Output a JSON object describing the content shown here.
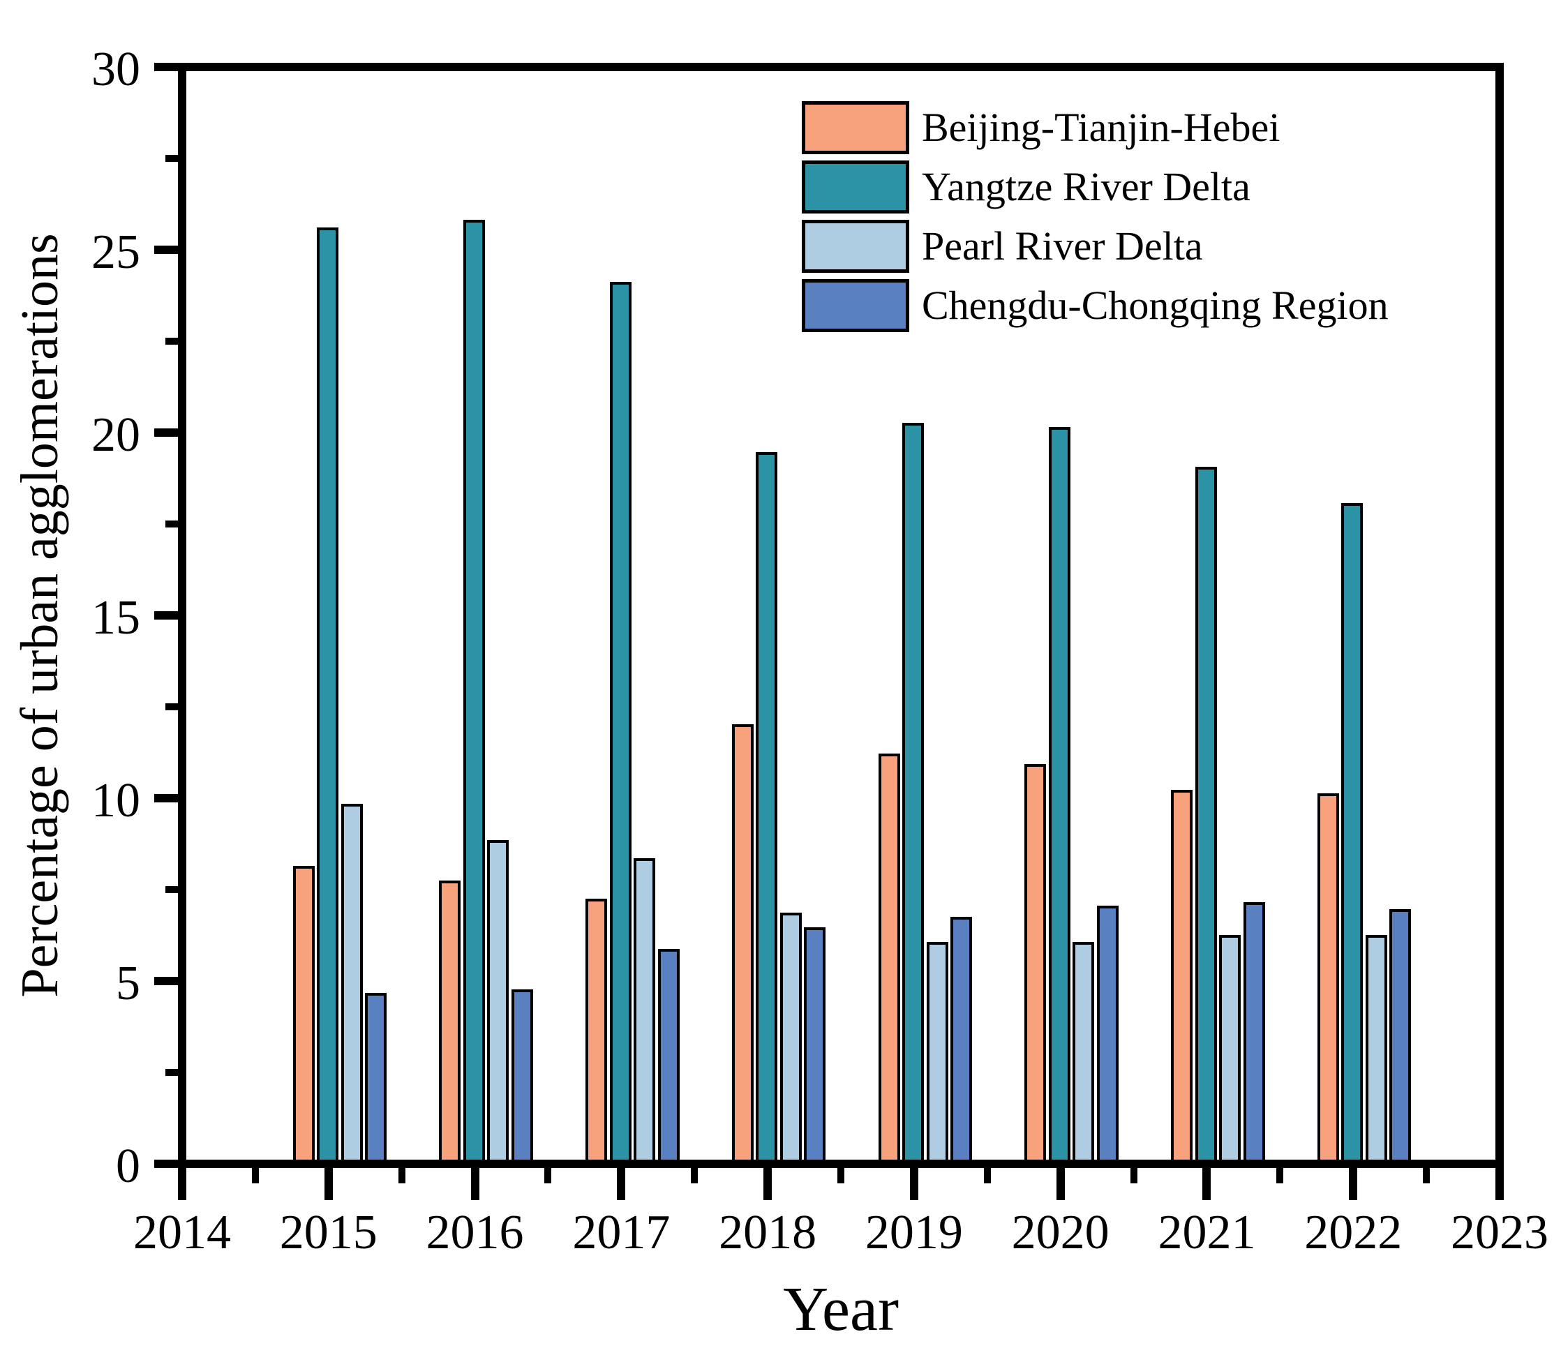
{
  "figure": {
    "background": "#ffffff",
    "text_color": "#000000"
  },
  "chart_data": {
    "type": "bar",
    "title": "",
    "xlabel": "Year",
    "ylabel": "Percentage of urban agglomerations",
    "x_tick_labels": [
      "2014",
      "2015",
      "2016",
      "2017",
      "2018",
      "2019",
      "2020",
      "2021",
      "2022",
      "2023"
    ],
    "y_tick_labels": [
      "0",
      "5",
      "10",
      "15",
      "20",
      "25",
      "30"
    ],
    "ylim": [
      0,
      30
    ],
    "y_major_step": 5,
    "y_minor_step": 2.5,
    "x_minor_step": 0.5,
    "grid": false,
    "legend_position": "upper-right-inside",
    "axis_color": "#000000",
    "bar_border_color": "#000000",
    "categories": [
      "2015",
      "2016",
      "2017",
      "2018",
      "2019",
      "2020",
      "2021",
      "2022"
    ],
    "series": [
      {
        "name": "Beijing-Tianjin-Hebei",
        "color": "#F7A27C",
        "values": [
          8.1,
          7.7,
          7.2,
          12.0,
          11.2,
          10.9,
          10.2,
          10.1
        ]
      },
      {
        "name": "Yangtze River Delta",
        "color": "#2C93A6",
        "values": [
          25.7,
          25.9,
          24.2,
          19.5,
          20.3,
          20.2,
          19.1,
          18.1
        ]
      },
      {
        "name": "Pearl River Delta",
        "color": "#AECDE3",
        "values": [
          9.8,
          8.8,
          8.3,
          6.8,
          6.0,
          6.0,
          6.2,
          6.2
        ]
      },
      {
        "name": "Chengdu-Chongqing Region",
        "color": "#5981C1",
        "values": [
          4.6,
          4.7,
          5.8,
          6.4,
          6.7,
          7.0,
          7.1,
          6.9
        ]
      }
    ]
  }
}
